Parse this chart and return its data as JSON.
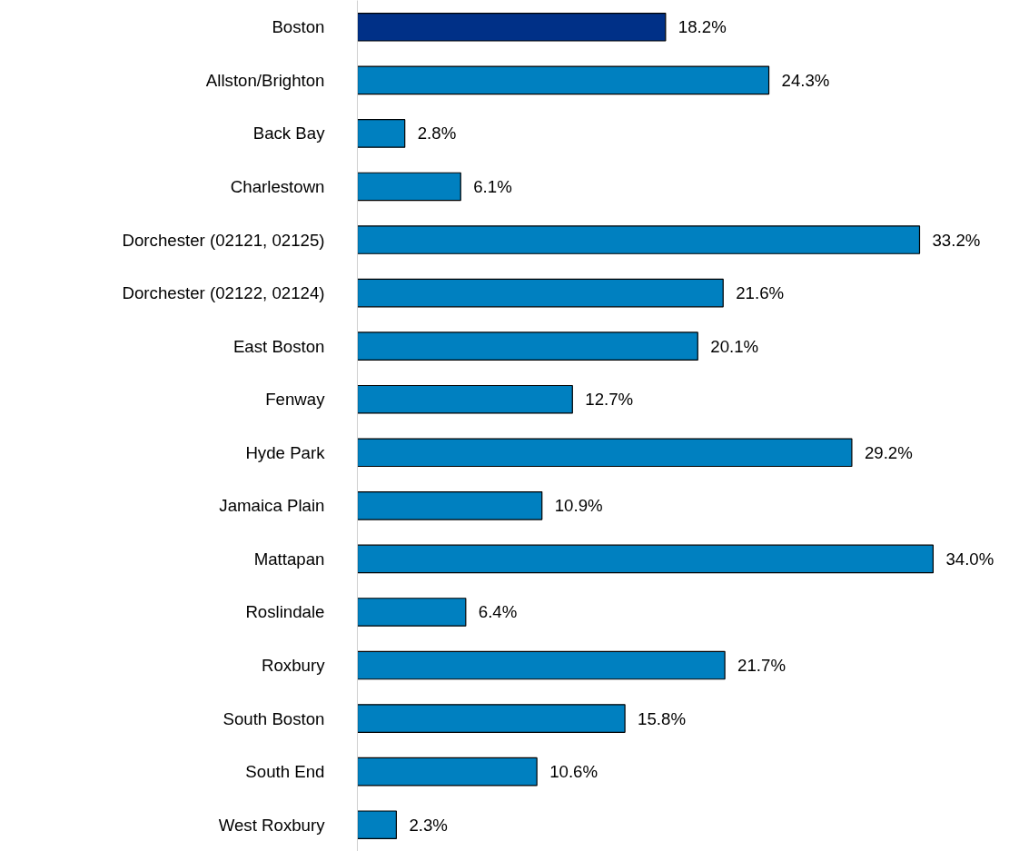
{
  "chart_data": {
    "type": "bar",
    "orientation": "horizontal",
    "categories": [
      "Boston",
      "Allston/Brighton",
      "Back Bay",
      "Charlestown",
      "Dorchester (02121, 02125)",
      "Dorchester (02122, 02124)",
      "East Boston",
      "Fenway",
      "Hyde Park",
      "Jamaica Plain",
      "Mattapan",
      "Roslindale",
      "Roxbury",
      "South Boston",
      "South End",
      "West Roxbury"
    ],
    "values": [
      18.2,
      24.3,
      2.8,
      6.1,
      33.2,
      21.6,
      20.1,
      12.7,
      29.2,
      10.9,
      34.0,
      6.4,
      21.7,
      15.8,
      10.6,
      2.3
    ],
    "colors": [
      "#003087",
      "#0080c0",
      "#0080c0",
      "#0080c0",
      "#0080c0",
      "#0080c0",
      "#0080c0",
      "#0080c0",
      "#0080c0",
      "#0080c0",
      "#0080c0",
      "#0080c0",
      "#0080c0",
      "#0080c0",
      "#0080c0",
      "#0080c0"
    ],
    "value_labels": [
      "18.2%",
      "24.3%",
      "2.8%",
      "6.1%",
      "33.2%",
      "21.6%",
      "20.1%",
      "12.7%",
      "29.2%",
      "10.9%",
      "34.0%",
      "6.4%",
      "21.7%",
      "15.8%",
      "10.6%",
      "2.3%"
    ],
    "grid": false
  }
}
